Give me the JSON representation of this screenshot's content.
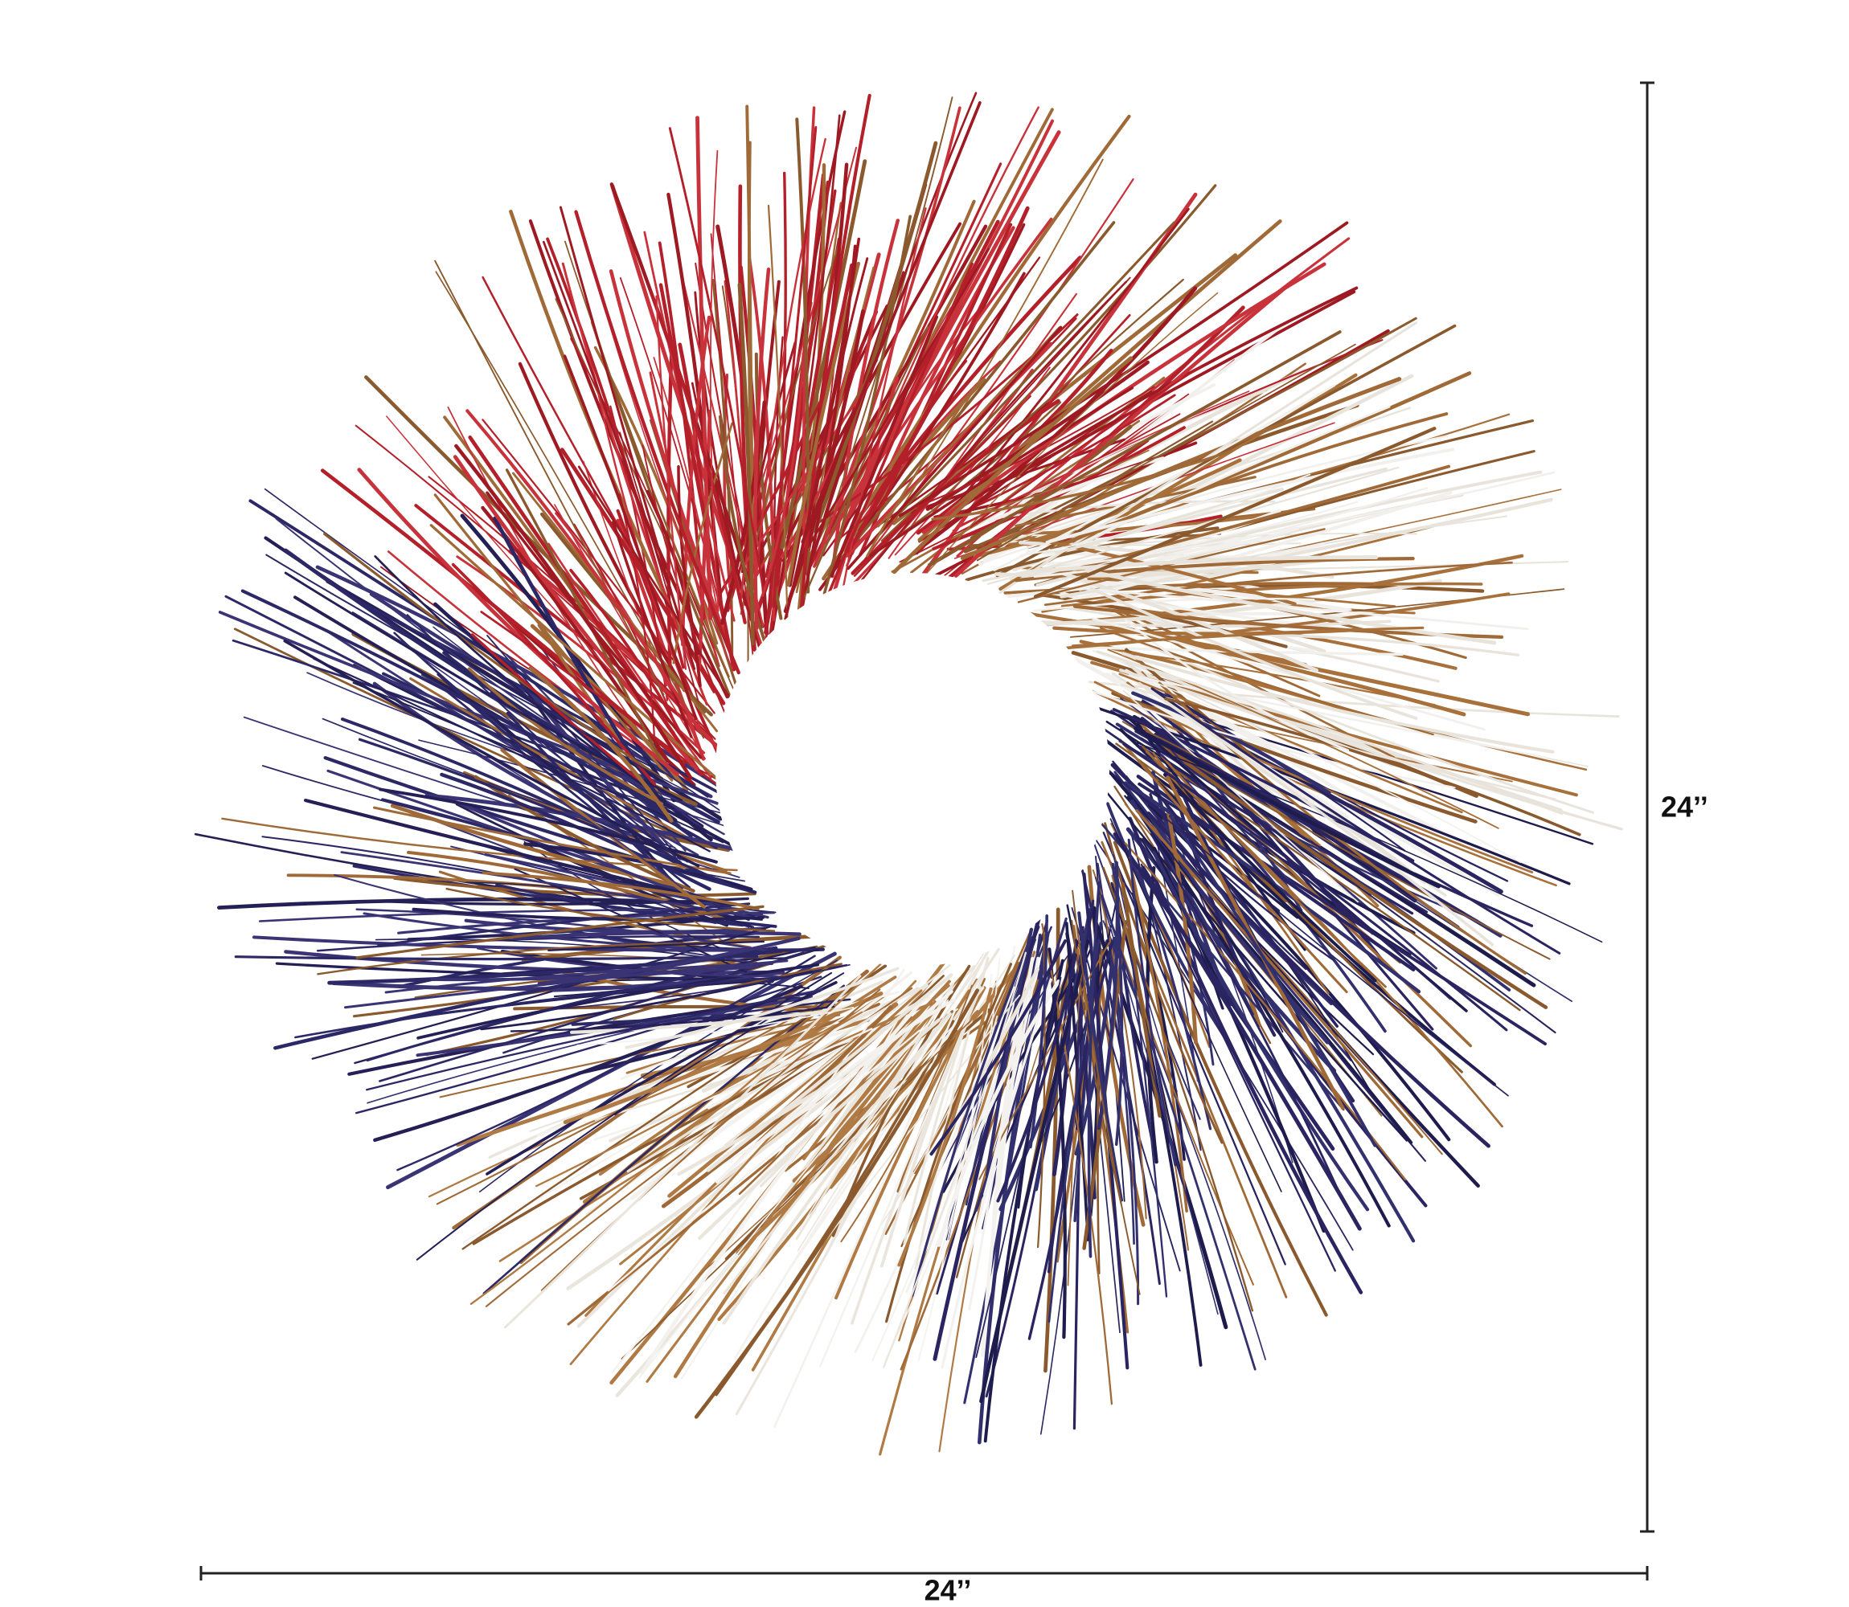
{
  "dimensions": {
    "height": {
      "label": "24’’"
    },
    "width": {
      "label": "24’’"
    }
  }
}
